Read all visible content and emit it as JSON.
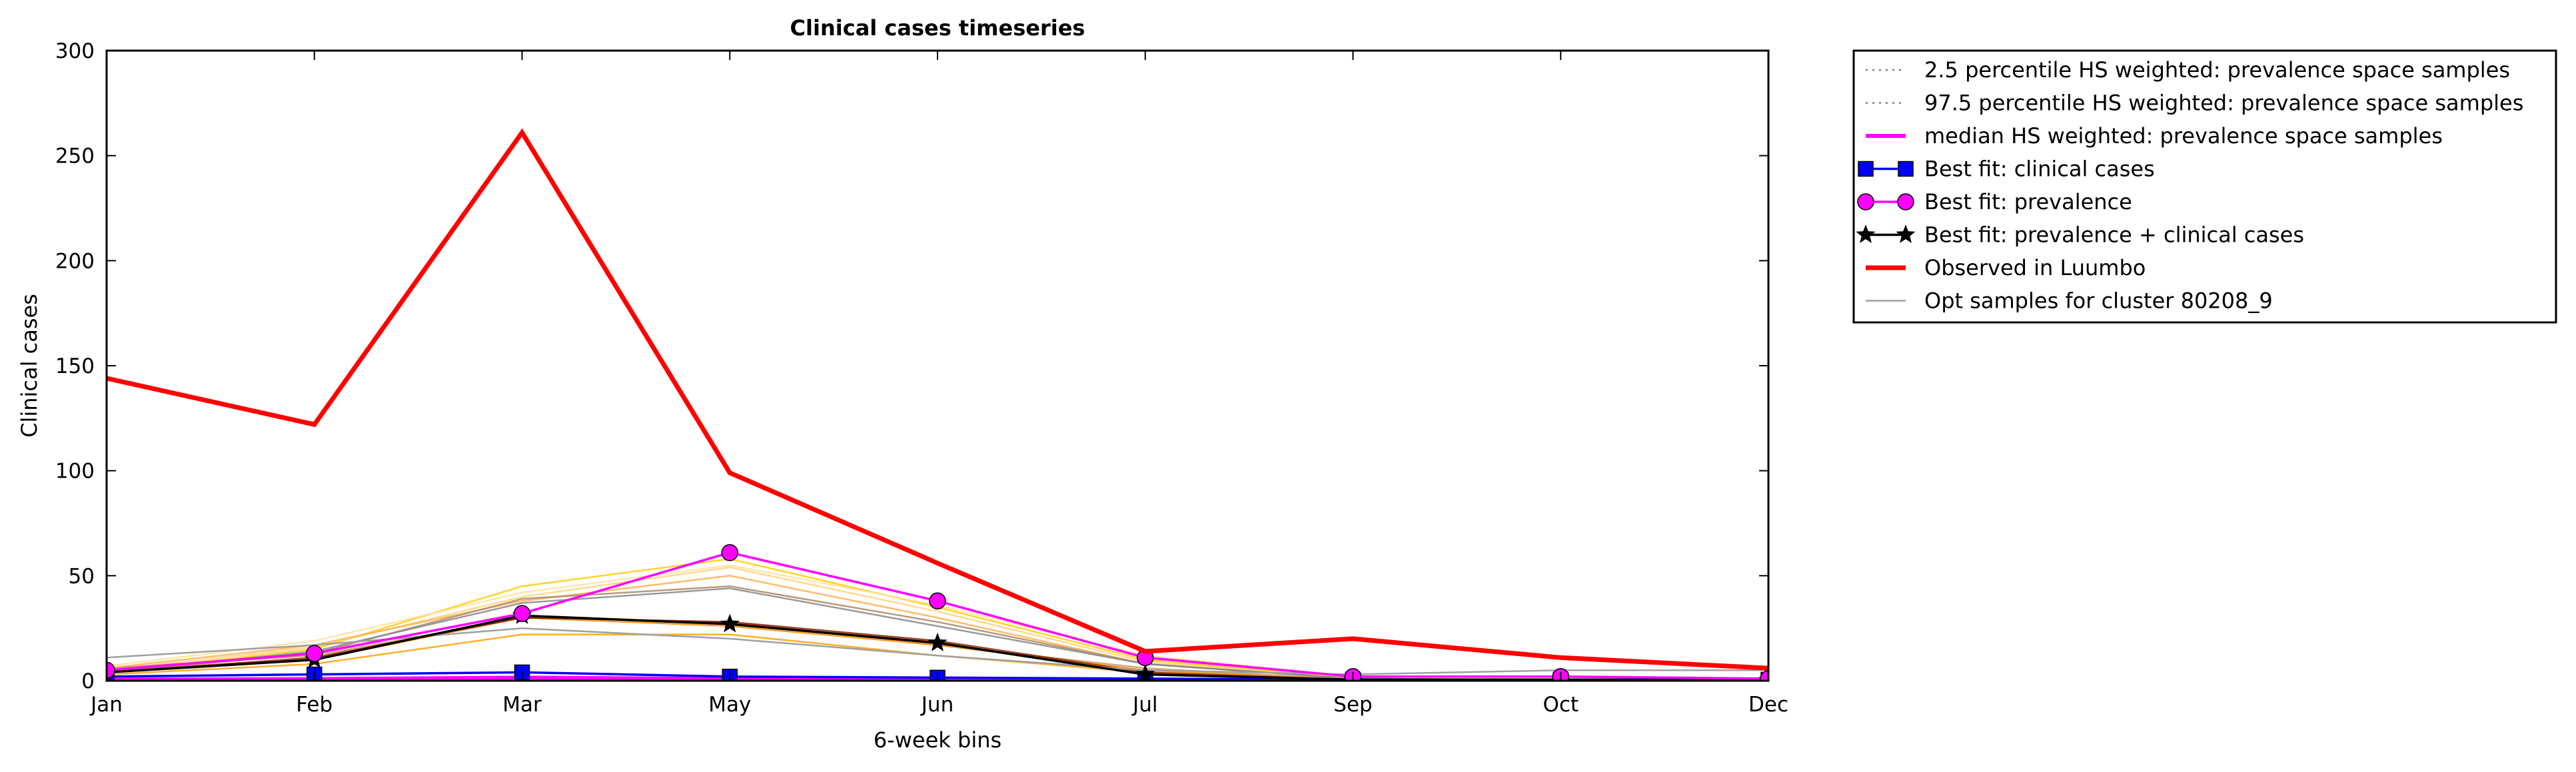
{
  "chart_data": {
    "type": "line",
    "title": "Clinical cases timeseries",
    "xlabel": "6-week bins",
    "ylabel": "Clinical cases",
    "categories": [
      "Jan",
      "Feb",
      "Mar",
      "May",
      "Jun",
      "Jul",
      "Sep",
      "Oct",
      "Dec"
    ],
    "yticks": [
      "0",
      "50",
      "100",
      "150",
      "200",
      "250",
      "300"
    ],
    "ylim": [
      0,
      300
    ],
    "grid": false,
    "legend_position": "outside right, top",
    "series": [
      {
        "name": "2.5 percentile HS weighted: prevalence space samples",
        "color": "#808080",
        "style": "dotted",
        "marker": "none",
        "values": [
          0.3,
          0.5,
          1,
          0.5,
          0.3,
          0.2,
          0.1,
          0.1,
          0.1
        ]
      },
      {
        "name": "97.5 percentile HS weighted: prevalence space samples",
        "color": "#808080",
        "style": "dotted",
        "marker": "none",
        "values": [
          0.8,
          1,
          2,
          1,
          0.6,
          0.4,
          0.2,
          0.2,
          0.2
        ]
      },
      {
        "name": "median HS weighted: prevalence space samples",
        "color": "#ff00ff",
        "style": "solid",
        "marker": "none",
        "values": [
          0.5,
          0.8,
          1.5,
          0.8,
          0.5,
          0.3,
          0.1,
          0.1,
          0.1
        ]
      },
      {
        "name": "Best fit: clinical cases",
        "color": "#0000ff",
        "style": "solid",
        "marker": "square",
        "values": [
          2,
          3,
          4,
          2,
          1.5,
          1,
          0.5,
          0.5,
          0.5
        ]
      },
      {
        "name": "Best fit: prevalence",
        "color": "#ff00ff",
        "style": "solid",
        "marker": "circle",
        "values": [
          5,
          13,
          32,
          61,
          38,
          11,
          2,
          2,
          1
        ]
      },
      {
        "name": "Best fit: prevalence + clinical cases",
        "color": "#000000",
        "style": "solid",
        "marker": "star",
        "values": [
          4,
          10,
          31,
          27,
          18,
          3,
          0.5,
          0.5,
          0.3
        ]
      },
      {
        "name": "Observed in Luumbo",
        "color": "#ff0000",
        "style": "solid",
        "marker": "none",
        "values": [
          144,
          122,
          261,
          99,
          56,
          14,
          20,
          11,
          6
        ]
      },
      {
        "name": "Opt samples for cluster 80208_9",
        "color": "#a0a0a0",
        "style": "solid",
        "marker": "none",
        "values": [
          11,
          17,
          25,
          20,
          12,
          5,
          3,
          5,
          5
        ]
      }
    ],
    "sample_lines": [
      {
        "color": "#ffcc00",
        "values": [
          4,
          15,
          45,
          58,
          35,
          10,
          1,
          0.5,
          0.3
        ]
      },
      {
        "color": "#ffd27f",
        "values": [
          5,
          16,
          40,
          54,
          33,
          9,
          1,
          0.5,
          0.3
        ]
      },
      {
        "color": "#ffb050",
        "values": [
          6,
          17,
          38,
          50,
          30,
          8,
          1,
          0.5,
          0.3
        ]
      },
      {
        "color": "#ffa000",
        "values": [
          3,
          8,
          22,
          22,
          12,
          4,
          0.5,
          0.5,
          0.3
        ]
      },
      {
        "color": "#cc9966",
        "values": [
          6,
          12,
          30,
          28,
          17,
          6,
          0.5,
          0.5,
          0.3
        ]
      },
      {
        "color": "#aa8866",
        "values": [
          4,
          13,
          39,
          45,
          28,
          8,
          1,
          0.5,
          0.3
        ]
      },
      {
        "color": "#ff8c00",
        "values": [
          5,
          10,
          30,
          26,
          17,
          5,
          0.5,
          0.5,
          0.3
        ]
      },
      {
        "color": "#888888",
        "values": [
          4,
          14,
          37,
          44,
          26,
          8,
          1,
          0.5,
          0.3
        ]
      },
      {
        "color": "#8b2500",
        "values": [
          4,
          11,
          30,
          28,
          19,
          4,
          0.5,
          0.5,
          0.3
        ]
      },
      {
        "color": "#ffe0a0",
        "values": [
          7,
          19,
          42,
          55,
          36,
          12,
          2,
          1,
          0.5
        ]
      }
    ]
  }
}
